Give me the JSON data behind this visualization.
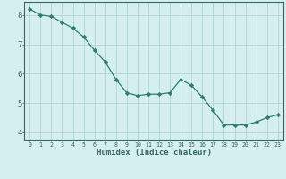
{
  "x": [
    0,
    1,
    2,
    3,
    4,
    5,
    6,
    7,
    8,
    9,
    10,
    11,
    12,
    13,
    14,
    15,
    16,
    17,
    18,
    19,
    20,
    21,
    22,
    23
  ],
  "y": [
    8.2,
    8.0,
    7.95,
    7.75,
    7.55,
    7.25,
    6.8,
    6.4,
    5.8,
    5.35,
    5.25,
    5.3,
    5.3,
    5.35,
    5.8,
    5.6,
    5.2,
    4.75,
    4.25,
    4.25,
    4.25,
    4.35,
    4.5,
    4.6
  ],
  "line_color": "#2d7c6e",
  "marker": "D",
  "marker_size": 2.2,
  "bg_color": "#d5efee",
  "grid_color": "#aacfcc",
  "axis_color": "#336666",
  "xlabel": "Humidex (Indice chaleur)",
  "xlim": [
    -0.5,
    23.5
  ],
  "ylim": [
    3.75,
    8.45
  ],
  "yticks": [
    4,
    5,
    6,
    7,
    8
  ],
  "xticks": [
    0,
    1,
    2,
    3,
    4,
    5,
    6,
    7,
    8,
    9,
    10,
    11,
    12,
    13,
    14,
    15,
    16,
    17,
    18,
    19,
    20,
    21,
    22,
    23
  ]
}
